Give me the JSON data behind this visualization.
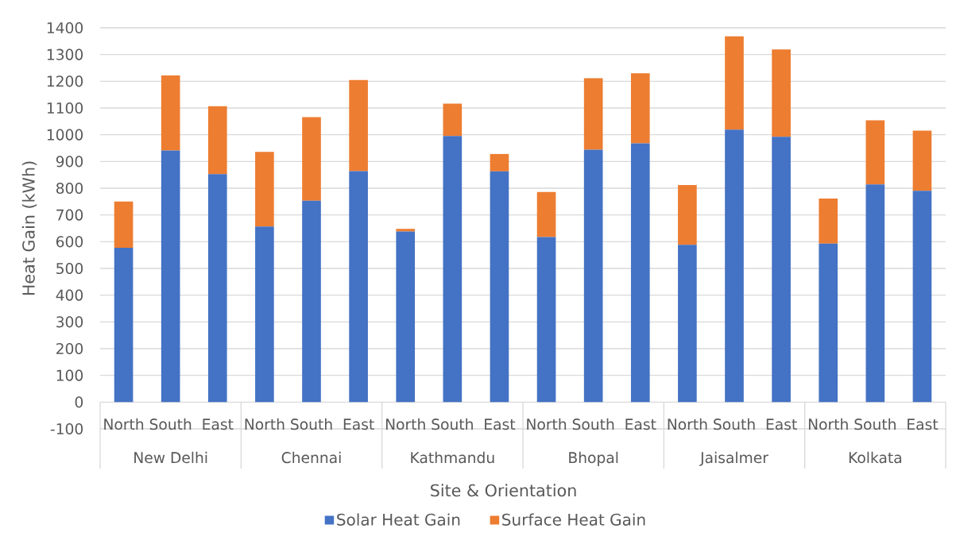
{
  "chart_data": {
    "type": "bar",
    "stacked": true,
    "xlabel": "Site & Orientation",
    "ylabel": "Heat Gain (kWh)",
    "categories": [
      "North",
      "South",
      "East",
      "North",
      "South",
      "East",
      "North",
      "South",
      "East",
      "North",
      "South",
      "East",
      "North",
      "South",
      "East",
      "North",
      "South",
      "East"
    ],
    "series": [
      {
        "name": "Solar Heat Gain",
        "color": "#4472c4",
        "values": [
          577,
          941,
          853,
          657,
          753,
          864,
          638,
          995,
          863,
          617,
          944,
          968,
          588,
          1019,
          992,
          593,
          814,
          790
        ]
      },
      {
        "name": "Surface Heat Gain",
        "color": "#ed7d31",
        "values": [
          173,
          281,
          254,
          279,
          313,
          341,
          10,
          121,
          65,
          169,
          267,
          262,
          224,
          349,
          327,
          168,
          240,
          225
        ]
      }
    ],
    "ylim": [
      -100,
      1400
    ],
    "yticks": [
      -100,
      0,
      100,
      200,
      300,
      400,
      500,
      600,
      700,
      800,
      900,
      1000,
      1100,
      1200,
      1300,
      1400
    ],
    "grid": "y",
    "legend": "bottom",
    "annotations": [
      "New Delhi",
      "Chennai",
      "Kathmandu",
      "Bhopal",
      "Jaisalmer",
      "Kolkata"
    ]
  }
}
